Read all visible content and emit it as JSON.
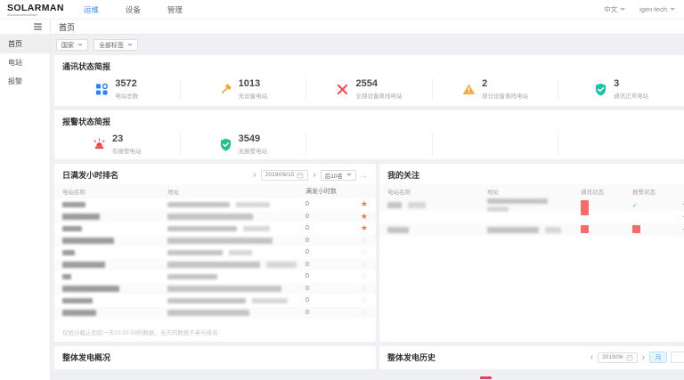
{
  "topbar": {
    "logo": "SOLARMAN",
    "nav": [
      {
        "label": "运维",
        "active": true
      },
      {
        "label": "设备",
        "active": false
      },
      {
        "label": "管理",
        "active": false
      }
    ],
    "language": "中文",
    "account": "igen-tech"
  },
  "sidebar": {
    "items": [
      {
        "label": "首页",
        "active": true
      },
      {
        "label": "电站",
        "active": false
      },
      {
        "label": "报警",
        "active": false
      }
    ]
  },
  "breadcrumb": "首页",
  "filters": {
    "country": "国家",
    "tag": "全部标签"
  },
  "comm_panel": {
    "title": "通讯状态简报",
    "stats": [
      {
        "icon": "plants-total-icon",
        "value": "3572",
        "label": "电站总数"
      },
      {
        "icon": "no-device-icon",
        "value": "1013",
        "label": "无设备电站"
      },
      {
        "icon": "all-offline-icon",
        "value": "2554",
        "label": "全部设备离线电站"
      },
      {
        "icon": "partial-offline-icon",
        "value": "2",
        "label": "部分设备离线电站"
      },
      {
        "icon": "comm-normal-icon",
        "value": "3",
        "label": "通讯正常电站"
      }
    ]
  },
  "alarm_panel": {
    "title": "报警状态简报",
    "stats": [
      {
        "icon": "has-alarm-icon",
        "value": "23",
        "label": "有报警电站"
      },
      {
        "icon": "no-alarm-icon",
        "value": "3549",
        "label": "无报警电站"
      }
    ]
  },
  "ranking_panel": {
    "title": "日满发小时排名",
    "date": "2019/06/15",
    "range_select": "后10名",
    "columns": [
      "电站名称",
      "地址",
      "满发小时数"
    ],
    "rows": [
      {
        "hours": "0",
        "starred": true
      },
      {
        "hours": "0",
        "starred": true
      },
      {
        "hours": "0",
        "starred": true
      },
      {
        "hours": "0",
        "starred": false
      },
      {
        "hours": "0",
        "starred": false
      },
      {
        "hours": "0",
        "starred": false
      },
      {
        "hours": "0",
        "starred": false
      },
      {
        "hours": "0",
        "starred": false
      },
      {
        "hours": "0",
        "starred": false
      },
      {
        "hours": "0",
        "starred": false
      }
    ],
    "footnote": "仅统计截止到前一天23:59:59的数据，当天的数据不参与排名"
  },
  "watch_panel": {
    "title": "我的关注",
    "columns": [
      "电站名称",
      "地址",
      "通讯状态",
      "报警状态"
    ],
    "rows": [
      {
        "comm_status": "offline",
        "alarm_status": "normal",
        "starred": true
      },
      {
        "comm_status": "",
        "alarm_status": "",
        "starred": true
      },
      {
        "comm_status": "offline",
        "alarm_status": "alarm",
        "starred": true
      }
    ]
  },
  "overview_panel": {
    "title": "整体发电概况"
  },
  "history_panel": {
    "title": "整体发电历史",
    "date": "2019/06",
    "unit_month": "月"
  }
}
